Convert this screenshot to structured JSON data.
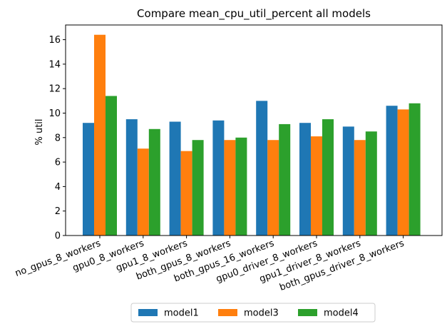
{
  "chart_data": {
    "type": "bar",
    "title": "Compare mean_cpu_util_percent all models",
    "xlabel": "",
    "ylabel": "% util",
    "ylim": [
      0,
      17.2
    ],
    "yticks": [
      0,
      2,
      4,
      6,
      8,
      10,
      12,
      14,
      16
    ],
    "grid": false,
    "legend_position": "bottom-center",
    "categories": [
      "no_gpus_8_workers",
      "gpu0_8_workers",
      "gpu1_8_workers",
      "both_gpus_8_workers",
      "both_gpus_16_workers",
      "gpu0_driver_8_workers",
      "gpu1_driver_8_workers",
      "both_gpus_driver_8_workers"
    ],
    "series": [
      {
        "name": "model1",
        "color": "#1f77b4",
        "values": [
          9.2,
          9.5,
          9.3,
          9.4,
          11.0,
          9.2,
          8.9,
          10.6
        ]
      },
      {
        "name": "model3",
        "color": "#ff7f0e",
        "values": [
          16.4,
          7.1,
          6.9,
          7.8,
          7.8,
          8.1,
          7.8,
          10.3
        ]
      },
      {
        "name": "model4",
        "color": "#2ca02c",
        "values": [
          11.4,
          8.7,
          7.8,
          8.0,
          9.1,
          9.5,
          8.5,
          10.8
        ]
      }
    ]
  }
}
